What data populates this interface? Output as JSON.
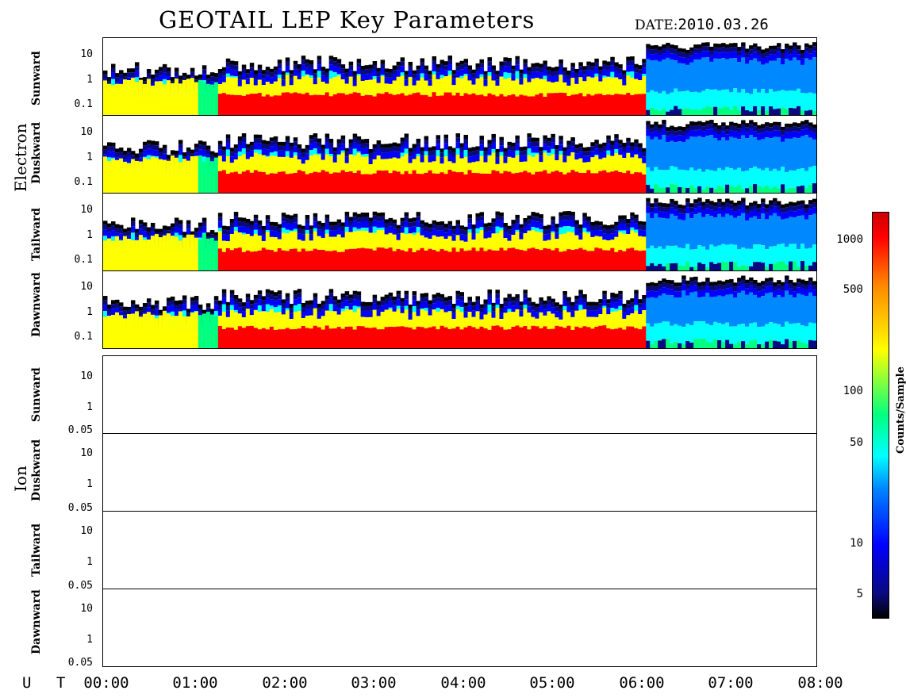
{
  "chart_data": {
    "type": "heatmap",
    "title": "GEOTAIL LEP Key Parameters",
    "date_label": "DATE:",
    "date_value": "2010.03.26",
    "time_axis_label": "U T",
    "time_ticks": [
      "00:00",
      "01:00",
      "02:00",
      "03:00",
      "04:00",
      "05:00",
      "06:00",
      "07:00",
      "08:00"
    ],
    "colorbar": {
      "label": "Counts/Sample",
      "scale": "log",
      "ticks": [
        "1000",
        "500",
        "100",
        "50",
        "10",
        "5"
      ]
    },
    "groups": [
      {
        "name": "Electron",
        "y_ticks": [
          "10",
          "1",
          "0.1"
        ],
        "panels": [
          "Sunward",
          "Duskward",
          "Tailward",
          "Dawnward"
        ]
      },
      {
        "name": "Ion",
        "y_ticks": [
          "10",
          "1",
          "0.05"
        ],
        "panels": [
          "Sunward",
          "Duskward",
          "Tailward",
          "Dawnward"
        ]
      }
    ]
  },
  "colors": {
    "low": "#000000",
    "mid_low": "#0000ff",
    "mid": "#00ffff",
    "mid_high": "#ffff00",
    "high": "#ff0000"
  }
}
